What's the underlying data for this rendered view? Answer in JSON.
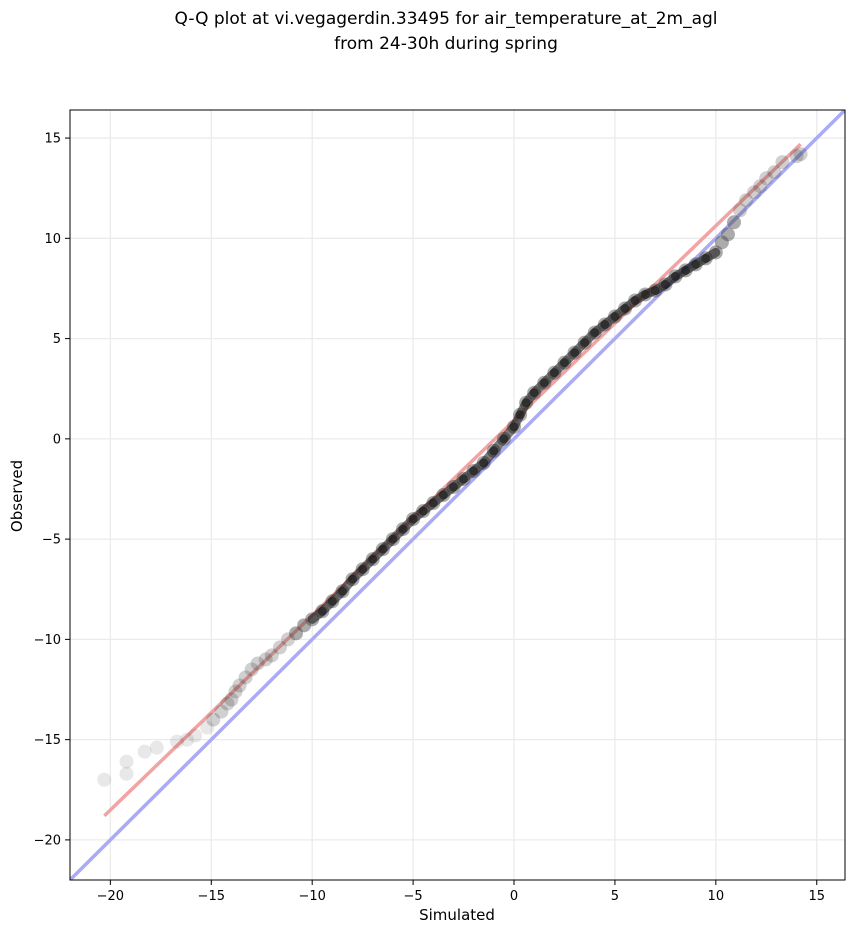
{
  "chart_data": {
    "type": "scatter",
    "title": "Q-Q plot at vi.vegagerdin.33495 for air_temperature_at_2m_agl",
    "subtitle": "from 24-30h during spring",
    "xlabel": "Simulated",
    "ylabel": "Observed",
    "xlim": [
      -22.0,
      16.4
    ],
    "ylim": [
      -22.0,
      16.4
    ],
    "xticks": [
      -20,
      -15,
      -10,
      -5,
      0,
      5,
      10,
      15
    ],
    "yticks": [
      -20,
      -15,
      -10,
      -5,
      0,
      5,
      10,
      15
    ],
    "xtick_labels": [
      "−20",
      "−15",
      "−10",
      "−5",
      "0",
      "5",
      "10",
      "15"
    ],
    "ytick_labels": [
      "−20",
      "−15",
      "−10",
      "−5",
      "0",
      "5",
      "10",
      "15"
    ],
    "grid": true,
    "colors": {
      "identity_line": "#aaaaf5",
      "fit_line": "#f2a3a3",
      "points": "#444444"
    },
    "identity_line": {
      "x": [
        -22.0,
        16.4
      ],
      "y": [
        -22.0,
        16.4
      ]
    },
    "fit_line": {
      "x": [
        -20.3,
        14.2
      ],
      "y": [
        -18.8,
        14.7
      ]
    },
    "quantiles": {
      "x": [
        -20.3,
        -19.2,
        -19.2,
        -18.3,
        -17.7,
        -16.7,
        -16.2,
        -15.8,
        -15.2,
        -14.9,
        -14.5,
        -14.2,
        -14.0,
        -13.8,
        -13.6,
        -13.3,
        -13.0,
        -12.7,
        -12.3,
        -12.0,
        -11.6,
        -11.2,
        -10.8,
        -10.4,
        -10.0,
        -9.5,
        -9.0,
        -8.5,
        -8.0,
        -7.5,
        -7.0,
        -6.5,
        -6.0,
        -5.5,
        -5.0,
        -4.5,
        -4.0,
        -3.5,
        -3.0,
        -2.5,
        -2.0,
        -1.5,
        -1.0,
        -0.5,
        0.0,
        0.3,
        0.6,
        1.0,
        1.5,
        2.0,
        2.5,
        3.0,
        3.5,
        4.0,
        4.5,
        5.0,
        5.5,
        6.0,
        6.5,
        7.0,
        7.5,
        8.0,
        8.5,
        9.0,
        9.5,
        10.0,
        10.3,
        10.6,
        10.9,
        11.2,
        11.5,
        11.9,
        12.2,
        12.5,
        12.9,
        13.3,
        14.0,
        14.2
      ],
      "y": [
        -17.0,
        -16.7,
        -16.1,
        -15.6,
        -15.4,
        -15.1,
        -15.0,
        -14.8,
        -14.4,
        -14.0,
        -13.6,
        -13.2,
        -13.0,
        -12.6,
        -12.3,
        -11.9,
        -11.5,
        -11.2,
        -11.0,
        -10.8,
        -10.4,
        -10.0,
        -9.7,
        -9.3,
        -9.0,
        -8.6,
        -8.1,
        -7.6,
        -7.0,
        -6.5,
        -6.0,
        -5.5,
        -5.0,
        -4.5,
        -4.0,
        -3.6,
        -3.2,
        -2.8,
        -2.4,
        -2.0,
        -1.6,
        -1.2,
        -0.6,
        0.0,
        0.6,
        1.2,
        1.8,
        2.3,
        2.8,
        3.3,
        3.8,
        4.3,
        4.8,
        5.3,
        5.7,
        6.1,
        6.5,
        6.9,
        7.2,
        7.4,
        7.7,
        8.1,
        8.4,
        8.7,
        9.0,
        9.3,
        9.8,
        10.2,
        10.8,
        11.4,
        11.9,
        12.3,
        12.6,
        13.0,
        13.3,
        13.8,
        14.1,
        14.2
      ]
    }
  }
}
